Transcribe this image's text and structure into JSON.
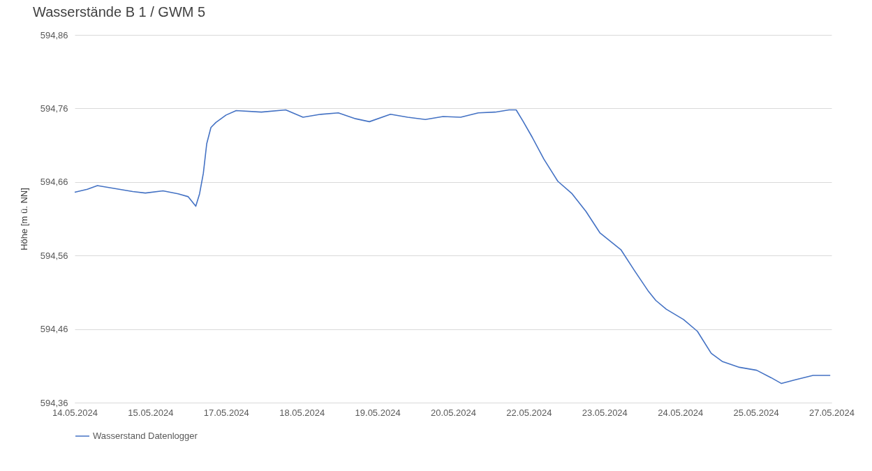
{
  "chart_data": {
    "type": "line",
    "title": "Wasserstände B 1 / GWM 5",
    "ylabel": "Höhe [m ü. NN]",
    "x": [
      "2024-05-14T12:00",
      "2024-05-14T17:00",
      "2024-05-14T21:00",
      "2024-05-15T04:00",
      "2024-05-15T11:00",
      "2024-05-15T16:00",
      "2024-05-15T23:00",
      "2024-05-16T05:00",
      "2024-05-16T09:00",
      "2024-05-16T12:00",
      "2024-05-16T13:30",
      "2024-05-16T15:00",
      "2024-05-16T16:20",
      "2024-05-16T18:00",
      "2024-05-16T20:00",
      "2024-05-17T00:00",
      "2024-05-17T04:00",
      "2024-05-17T14:00",
      "2024-05-17T23:40",
      "2024-05-18T06:30",
      "2024-05-18T13:30",
      "2024-05-18T20:30",
      "2024-05-19T03:20",
      "2024-05-19T08:50",
      "2024-05-19T17:10",
      "2024-05-20T00:00",
      "2024-05-20T07:00",
      "2024-05-20T14:00",
      "2024-05-20T21:00",
      "2024-05-21T04:00",
      "2024-05-21T10:40",
      "2024-05-21T16:10",
      "2024-05-21T19:00",
      "2024-05-21T21:40",
      "2024-05-22T01:20",
      "2024-05-22T06:00",
      "2024-05-22T11:30",
      "2024-05-22T17:10",
      "2024-05-22T22:40",
      "2024-05-23T04:10",
      "2024-05-23T12:30",
      "2024-05-23T18:00",
      "2024-05-23T23:30",
      "2024-05-24T02:20",
      "2024-05-24T06:30",
      "2024-05-24T13:20",
      "2024-05-24T18:50",
      "2024-05-25T00:20",
      "2024-05-25T04:40",
      "2024-05-25T11:30",
      "2024-05-25T18:20",
      "2024-05-26T00:00",
      "2024-05-26T04:10",
      "2024-05-26T09:40",
      "2024-05-26T16:40",
      "2024-05-26T23:30"
    ],
    "series": [
      {
        "name": "Wasserstand Datenlogger",
        "color": "#4472c4",
        "values": [
          594.646,
          594.65,
          594.655,
          594.651,
          594.647,
          594.645,
          594.648,
          594.644,
          594.64,
          594.627,
          594.644,
          594.672,
          594.712,
          594.734,
          594.741,
          594.751,
          594.757,
          594.755,
          594.758,
          594.748,
          594.752,
          594.754,
          594.746,
          594.742,
          594.752,
          594.748,
          594.745,
          594.749,
          594.748,
          594.754,
          594.755,
          594.758,
          594.758,
          594.743,
          594.721,
          594.691,
          594.661,
          594.644,
          594.62,
          594.591,
          594.568,
          594.539,
          594.511,
          594.499,
          594.487,
          594.473,
          594.457,
          594.427,
          594.416,
          594.408,
          594.404,
          594.394,
          594.386,
          594.391,
          594.397,
          594.397
        ]
      }
    ],
    "xlim": [
      "2024-05-14T12:00",
      "2024-05-27T00:00"
    ],
    "xticks": [
      {
        "value": "2024-05-14T12:00",
        "label": "14.05.2024"
      },
      {
        "value": "2024-05-15T18:00",
        "label": "15.05.2024"
      },
      {
        "value": "2024-05-17T00:00",
        "label": "17.05.2024"
      },
      {
        "value": "2024-05-18T06:00",
        "label": "18.05.2024"
      },
      {
        "value": "2024-05-19T12:00",
        "label": "19.05.2024"
      },
      {
        "value": "2024-05-20T18:00",
        "label": "20.05.2024"
      },
      {
        "value": "2024-05-22T00:00",
        "label": "22.05.2024"
      },
      {
        "value": "2024-05-23T06:00",
        "label": "23.05.2024"
      },
      {
        "value": "2024-05-24T12:00",
        "label": "24.05.2024"
      },
      {
        "value": "2024-05-25T18:00",
        "label": "25.05.2024"
      },
      {
        "value": "2024-05-27T00:00",
        "label": "27.05.2024"
      }
    ],
    "ylim": [
      594.36,
      594.86
    ],
    "yticks": [
      {
        "value": 594.36,
        "label": "594,36"
      },
      {
        "value": 594.46,
        "label": "594,46"
      },
      {
        "value": 594.56,
        "label": "594,56"
      },
      {
        "value": 594.66,
        "label": "594,66"
      },
      {
        "value": 594.76,
        "label": "594,76"
      },
      {
        "value": 594.86,
        "label": "594,86"
      }
    ],
    "grid": "y",
    "legend": "bottom"
  }
}
